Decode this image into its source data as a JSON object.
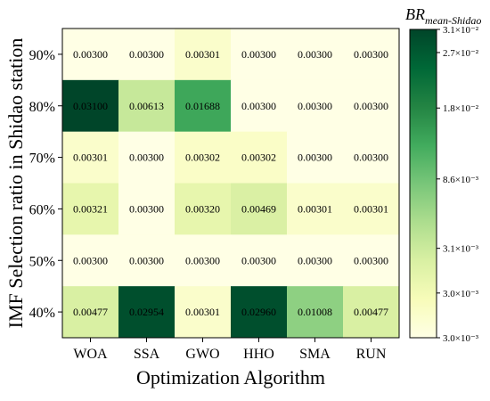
{
  "chart_data": {
    "type": "heatmap",
    "xlabel": "Optimization Algorithm",
    "ylabel": "IMF Selection ratio in Shidao station",
    "x_categories": [
      "WOA",
      "SSA",
      "GWO",
      "HHO",
      "SMA",
      "RUN"
    ],
    "y_categories": [
      "90%",
      "80%",
      "70%",
      "60%",
      "50%",
      "40%"
    ],
    "values": [
      [
        0.003,
        0.003,
        0.00301,
        0.003,
        0.003,
        0.003
      ],
      [
        0.031,
        0.00613,
        0.01688,
        0.003,
        0.003,
        0.003
      ],
      [
        0.00301,
        0.003,
        0.00302,
        0.00302,
        0.003,
        0.003
      ],
      [
        0.00321,
        0.003,
        0.0032,
        0.00469,
        0.00301,
        0.00301
      ],
      [
        0.003,
        0.003,
        0.003,
        0.003,
        0.003,
        0.003
      ],
      [
        0.00477,
        0.02954,
        0.00301,
        0.0296,
        0.01008,
        0.00477
      ]
    ],
    "labels": [
      [
        "0.00300",
        "0.00300",
        "0.00301",
        "0.00300",
        "0.00300",
        "0.00300"
      ],
      [
        "0.03100",
        "0.00613",
        "0.01688",
        "0.00300",
        "0.00300",
        "0.00300"
      ],
      [
        "0.00301",
        "0.00300",
        "0.00302",
        "0.00302",
        "0.00300",
        "0.00300"
      ],
      [
        "0.00321",
        "0.00300",
        "0.00320",
        "0.00469",
        "0.00301",
        "0.00301"
      ],
      [
        "0.00300",
        "0.00300",
        "0.00300",
        "0.00300",
        "0.00300",
        "0.00300"
      ],
      [
        "0.00477",
        "0.02954",
        "0.00301",
        "0.02960",
        "0.01008",
        "0.00477"
      ]
    ],
    "colorbar": {
      "title_main": "BR",
      "title_sub": "mean-Shidao",
      "ticks": [
        {
          "value": 0.031,
          "label": "3.1×10⁻²"
        },
        {
          "value": 0.027,
          "label": "2.7×10⁻²"
        },
        {
          "value": 0.018,
          "label": "1.8×10⁻²"
        },
        {
          "value": 0.0086,
          "label": "8.6×10⁻³"
        },
        {
          "value": 0.0031,
          "label": "3.1×10⁻³"
        },
        {
          "value": 0.00301,
          "label": "3.0×10⁻³"
        },
        {
          "value": 0.003,
          "label": "3.0×10⁻³"
        }
      ],
      "colors": [
        "#ffffe5",
        "#f7fcb9",
        "#d9f0a3",
        "#addd8e",
        "#78c679",
        "#41ab5d",
        "#238443",
        "#006837",
        "#004529"
      ]
    }
  }
}
